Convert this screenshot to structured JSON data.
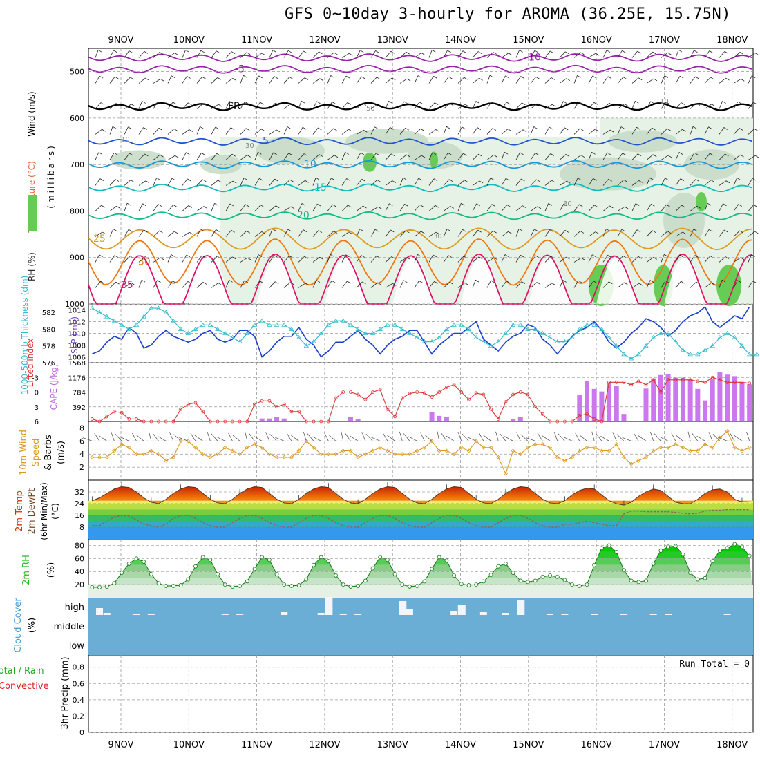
{
  "title": "GFS 0~10day 3-hourly for AROMA (36.25E, 15.75N)",
  "dates": [
    "9NOV",
    "10NOV",
    "11NOV",
    "12NOV",
    "13NOV",
    "14NOV",
    "15NOV",
    "16NOV",
    "17NOV",
    "18NOV"
  ],
  "colors": {
    "background": "#ffffff",
    "grid": "#999999",
    "rh_light": "#e6f2e6",
    "rh_mid": "#c8dcc8",
    "rh_dark": "#a9c0a9",
    "rh_bright": "#66cc55",
    "temp_-10": "#9922aa",
    "temp_-5": "#9922aa",
    "temp_FR": "#000000",
    "temp_5": "#2255cc",
    "temp_10": "#1199dd",
    "temp_15": "#11bbbb",
    "temp_20": "#11bb88",
    "temp_25": "#dd9922",
    "temp_30": "#ee7711",
    "temp_35": "#dd1166",
    "slp": "#1a3fcc",
    "thickness": "#33bbcc",
    "cape_bar": "#cc77ee",
    "lifted_index": "#dd3333",
    "wind10m": "#dd9922",
    "cloud_bg": "#6aaed6",
    "rh2m": "#22bb22",
    "dewpoint": "#886655"
  },
  "chart_data": [
    {
      "type": "contour",
      "panel": "upper-air",
      "ylabel_parts": [
        "RH (%)",
        "Temperature (°C)",
        "Wind (m/s)"
      ],
      "ylabel_unit": "(millibars)",
      "yticks": [
        500,
        600,
        700,
        800,
        900,
        1000
      ],
      "ylim": [
        1000,
        450
      ],
      "isotherms": [
        {
          "label": "-10",
          "pressure": 470
        },
        {
          "label": "-5",
          "pressure": 495
        },
        {
          "label": "FR",
          "pressure": 575
        },
        {
          "label": "5",
          "pressure": 650
        },
        {
          "label": "10",
          "pressure": 700
        },
        {
          "label": "15",
          "pressure": 750
        },
        {
          "label": "20",
          "pressure": 810
        },
        {
          "label": "25",
          "pressure": 860
        },
        {
          "label": "30",
          "pressure": 910
        },
        {
          "label": "35",
          "pressure": 960
        }
      ],
      "rh_labels": [
        "10",
        "30",
        "50",
        "30",
        "30",
        "10"
      ]
    },
    {
      "type": "line",
      "panel": "slp-thickness",
      "ylabel_left": "1000-500mb Thickness (dm)",
      "ylabel_right": "SLP (mb)",
      "yticks_left": [
        576,
        578,
        580,
        582
      ],
      "yticks_right": [
        1006,
        1008,
        1010,
        1012,
        1014
      ],
      "slp": [
        1006.5,
        1007,
        1008.5,
        1009.5,
        1009,
        1011,
        1010,
        1007.5,
        1008,
        1009.5,
        1010.5,
        1009.5,
        1009,
        1008.5,
        1009,
        1010,
        1010.5,
        1009,
        1008.5,
        1009,
        1010.5,
        1010.5,
        1009.5,
        1006,
        1007,
        1008.5,
        1009.5,
        1009.5,
        1011,
        1009,
        1008,
        1006,
        1007,
        1008.5,
        1008.5,
        1009.5,
        1010.5,
        1009,
        1008,
        1006.5,
        1008,
        1009,
        1009.5,
        1010.5,
        1010.5,
        1008.5,
        1006.5,
        1008,
        1009,
        1010,
        1010,
        1011,
        1012,
        1009,
        1008,
        1007,
        1008.5,
        1009.5,
        1010,
        1011.5,
        1011,
        1009,
        1008,
        1006.5,
        1008,
        1009.5,
        1010.5,
        1011,
        1012,
        1010.5,
        1008.5,
        1007.5,
        1008.5,
        1010,
        1011,
        1012.5,
        1012,
        1011,
        1009.5,
        1010.5,
        1012,
        1013,
        1013.5,
        1014.5,
        1012,
        1011,
        1012,
        1013,
        1012.5,
        1014.5
      ],
      "thickness": [
        582.5,
        582,
        581.5,
        581,
        580.5,
        580,
        580.5,
        581.5,
        582.5,
        582.5,
        582,
        581,
        580,
        579.5,
        580,
        580.5,
        580.5,
        580,
        579.5,
        579,
        578.5,
        579.5,
        580.5,
        581,
        580.5,
        580.5,
        580.5,
        580,
        579,
        578,
        578.5,
        579.5,
        580.5,
        581,
        581,
        580.5,
        580,
        579.5,
        579.5,
        580,
        580.5,
        580.5,
        580,
        579.5,
        579,
        578.5,
        578.5,
        579,
        580,
        580.5,
        580.5,
        580,
        579,
        578.5,
        578,
        578.5,
        579.5,
        580.5,
        580.5,
        580,
        580,
        579.5,
        579,
        578.5,
        578.5,
        579,
        580,
        580.5,
        580.5,
        580,
        579,
        578,
        577,
        576.5,
        577,
        578,
        579,
        579.5,
        579.5,
        578.5,
        577.5,
        577,
        577,
        577.5,
        578,
        579,
        579.5,
        579,
        578,
        577,
        577
      ]
    },
    {
      "type": "bar",
      "panel": "cape-li",
      "ylabel_left": "Lifted Index",
      "ylabel_right": "CAPE (J/kg)",
      "yticks_left": [
        -3,
        0,
        3,
        6
      ],
      "yticks_right": [
        392,
        784,
        1176,
        1568
      ],
      "cape": [
        0,
        0,
        0,
        0,
        0,
        0,
        0,
        0,
        0,
        0,
        0,
        0,
        0,
        0,
        0,
        0,
        0,
        0,
        0,
        0,
        0,
        0,
        0,
        80,
        80,
        120,
        80,
        0,
        0,
        0,
        0,
        0,
        0,
        0,
        0,
        130,
        60,
        0,
        0,
        0,
        0,
        0,
        0,
        0,
        0,
        0,
        240,
        150,
        130,
        0,
        0,
        0,
        0,
        0,
        0,
        0,
        0,
        70,
        120,
        0,
        0,
        0,
        0,
        0,
        0,
        0,
        0,
        0,
        0,
        0,
        0,
        0,
        0,
        0,
        0,
        0,
        0,
        0,
        0,
        0,
        0,
        0,
        0,
        0,
        0,
        0,
        0,
        0,
        0,
        0
      ],
      "cape_late": [
        0,
        0,
        0,
        0,
        0,
        0,
        0,
        0,
        0,
        0,
        0,
        0,
        0,
        0,
        0,
        0,
        0,
        0,
        0,
        0,
        0,
        0,
        0,
        0,
        0,
        0,
        0,
        0,
        0,
        0,
        0,
        0,
        0,
        0,
        0,
        0,
        0,
        0,
        0,
        0,
        0,
        0,
        0,
        0,
        0,
        0,
        0,
        0,
        0,
        0,
        0,
        0,
        0,
        0,
        0,
        0,
        0,
        0,
        0,
        0,
        0,
        0,
        0,
        0,
        0,
        0,
        0,
        0,
        0,
        0,
        0,
        0,
        0,
        0,
        0,
        0,
        0,
        0,
        0,
        0,
        0,
        0,
        0,
        0,
        0,
        0,
        0,
        0,
        0,
        0
      ],
      "cape_16to18": [
        700,
        1070,
        870,
        800,
        1040,
        960,
        200,
        0,
        0,
        880,
        1150,
        1240,
        1260,
        1170,
        1170,
        1140,
        870,
        560,
        1140,
        1320,
        1250,
        1210,
        1040,
        990
      ],
      "lifted_index": [
        5.5,
        6,
        5,
        4,
        4.2,
        5.5,
        5.5,
        6,
        6,
        6,
        6,
        6,
        3.5,
        2.5,
        2.2,
        4,
        6,
        6,
        6,
        6,
        6,
        6,
        2.5,
        1.8,
        1.8,
        3,
        2.5,
        4,
        4,
        6,
        6,
        6,
        6,
        1.2,
        0,
        0,
        0.5,
        1.5,
        0,
        -0.5,
        3.5,
        5,
        1.2,
        0.3,
        0,
        0.2,
        1,
        0,
        -1,
        -1.5,
        0,
        1.5,
        0.2,
        0.5,
        3.5,
        5.5,
        2,
        0.5,
        0,
        0.5,
        3,
        4.5,
        6,
        6,
        6,
        6,
        4.8,
        4.5,
        5.5,
        6,
        -2,
        -2,
        -2,
        -1.5,
        -2.2,
        -1.5,
        -2.5,
        0,
        -2.5,
        -2.5,
        -2.5,
        -2.5,
        -2.2,
        -2,
        -3,
        -2.5,
        -2,
        -2,
        -2,
        -1.8
      ]
    },
    {
      "type": "line",
      "panel": "wind10m",
      "ylabel": "10m Wind Speed & Barbs (m/s)",
      "yticks": [
        2,
        4,
        6,
        8
      ],
      "values": [
        3.5,
        3.5,
        3.5,
        4.5,
        5.5,
        5,
        4,
        4,
        4.5,
        4,
        3,
        3.5,
        6,
        6,
        5,
        4,
        3.5,
        4,
        5,
        4.5,
        4,
        5,
        5.5,
        5,
        4,
        3.5,
        3.5,
        3.5,
        4.5,
        6,
        5,
        4,
        4,
        4,
        4.5,
        4.5,
        3.5,
        4,
        4.5,
        5,
        4.5,
        4,
        4,
        4,
        4.5,
        5,
        6,
        4.5,
        4.5,
        4,
        5,
        4.5,
        6,
        5,
        5,
        3.5,
        1,
        4.5,
        4,
        5,
        5.5,
        5.5,
        5,
        3.5,
        3,
        3.5,
        4.5,
        5,
        5,
        4.5,
        4.5,
        5.5,
        3.5,
        2.5,
        3,
        3.5,
        4.5,
        5,
        5,
        5.5,
        5,
        4.5,
        4.5,
        5.5,
        5,
        6.5,
        7.5,
        5,
        4.5,
        5
      ]
    },
    {
      "type": "area",
      "panel": "temp2m",
      "ylabel": "2m Temp 2m DewPt (6hr Min/Max) (°C)",
      "yticks": [
        8,
        16,
        24,
        32
      ],
      "temp": [
        26,
        28,
        31,
        34,
        35.5,
        35,
        32,
        28,
        25,
        24,
        27,
        31,
        34,
        35.5,
        35,
        31,
        27,
        24.5,
        24,
        27,
        31,
        34,
        35.5,
        35,
        31,
        27,
        24.5,
        24,
        27,
        31,
        34,
        35.5,
        35,
        31,
        27,
        24.5,
        24,
        27,
        31,
        34,
        35.5,
        35,
        31,
        27,
        24.5,
        24,
        27,
        31,
        34,
        35.5,
        35,
        31,
        27,
        24.5,
        24,
        27,
        31,
        34,
        35.5,
        35,
        31,
        27,
        24.5,
        24,
        26,
        30,
        33,
        34.5,
        34,
        30,
        26,
        24,
        23,
        25,
        29,
        32,
        34,
        33,
        29,
        25,
        24,
        24,
        27,
        31,
        33.5,
        34,
        32,
        27,
        25
      ],
      "dewpoint": [
        9,
        9,
        12,
        15,
        16,
        15.5,
        13,
        10,
        9,
        8,
        10,
        14,
        16,
        16,
        14,
        11,
        9,
        8,
        8,
        11,
        14,
        16,
        16,
        14,
        11,
        9,
        8,
        8,
        11,
        14,
        16,
        16,
        14,
        11,
        9,
        8,
        8,
        11,
        14,
        16,
        16,
        14,
        11,
        9,
        8,
        8,
        11,
        14,
        16,
        16,
        14,
        11,
        9,
        8,
        8,
        11,
        14,
        16,
        16,
        14,
        11,
        9,
        8,
        8,
        10,
        10,
        11,
        12,
        11,
        10,
        9,
        9,
        17,
        19,
        19,
        18.5,
        18.5,
        18.5,
        18.5,
        18,
        17.5,
        17,
        17.5,
        19,
        19.5,
        19.5,
        20,
        20,
        20,
        20
      ]
    },
    {
      "type": "area",
      "panel": "rh2m",
      "ylabel": "2m RH (%)",
      "yticks": [
        20,
        40,
        60,
        80
      ],
      "values": [
        16,
        16,
        17,
        22,
        38,
        52,
        60,
        55,
        36,
        22,
        18,
        18,
        19,
        28,
        48,
        62,
        58,
        36,
        20,
        17,
        18,
        25,
        44,
        62,
        58,
        36,
        20,
        18,
        19,
        28,
        50,
        62,
        56,
        34,
        20,
        17,
        18,
        26,
        45,
        62,
        58,
        36,
        20,
        17,
        18,
        25,
        44,
        62,
        57,
        34,
        21,
        19,
        20,
        25,
        35,
        48,
        52,
        38,
        26,
        24,
        26,
        32,
        34,
        32,
        27,
        20,
        18,
        20,
        50,
        76,
        80,
        70,
        42,
        26,
        24,
        26,
        52,
        72,
        78,
        79,
        66,
        38,
        28,
        30,
        56,
        72,
        76,
        82,
        78,
        64
      ]
    },
    {
      "type": "bar",
      "panel": "cloud",
      "ylabel": "Cloud Cover (%)",
      "yticks": [
        "high",
        "middle",
        "low"
      ],
      "high": [
        0,
        8,
        32,
        0,
        0,
        0,
        0,
        0,
        0,
        0,
        0,
        0,
        0,
        0,
        0,
        0,
        0,
        0,
        0,
        0,
        0,
        0,
        0,
        0,
        0,
        0,
        0,
        0,
        0,
        0,
        0,
        0,
        0,
        0,
        0,
        0,
        0,
        0,
        0,
        0,
        0,
        0,
        0,
        0,
        0,
        0,
        0,
        0,
        0,
        0,
        0,
        0,
        0,
        0,
        0,
        0,
        0,
        0,
        0,
        0,
        0,
        0,
        0,
        0,
        0,
        0,
        0,
        0,
        0,
        0,
        0,
        0,
        0,
        0,
        0,
        0,
        0,
        0,
        0,
        0,
        0,
        0,
        0,
        0,
        0,
        0,
        0,
        0,
        0,
        0
      ]
    },
    {
      "type": "bar",
      "panel": "precip",
      "ylabel": "3hr Precip (mm)",
      "legend_total": "Total / Rain",
      "legend_conv": "Convective",
      "run_total": "Run Total = 0",
      "yticks": [
        0,
        0.2,
        0.4,
        0.6,
        0.8
      ],
      "values": []
    }
  ]
}
